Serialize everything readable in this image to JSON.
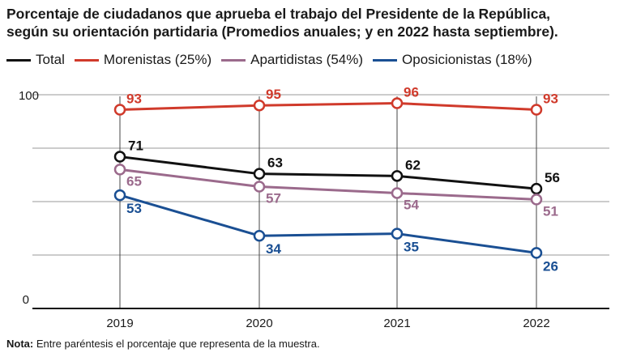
{
  "chart_data": {
    "type": "line",
    "title_line1": "Porcentaje de ciudadanos que aprueba el trabajo del Presidente de la República,",
    "title_line2": "según su orientación partidaria (Promedios anuales; y en 2022 hasta septiembre).",
    "categories": [
      "2019",
      "2020",
      "2021",
      "2022"
    ],
    "y_ticks": [
      "0",
      "100"
    ],
    "ylim": [
      0,
      100
    ],
    "grid": true,
    "legend_position": "top",
    "series": [
      {
        "name": "Total",
        "color": "#111111",
        "values": [
          71,
          63,
          62,
          56
        ],
        "labels": [
          "71",
          "63",
          "62",
          "56"
        ]
      },
      {
        "name": "Morenistas (25%)",
        "color": "#d03a2b",
        "values": [
          93,
          95,
          96,
          93
        ],
        "labels": [
          "93",
          "95",
          "96",
          "93"
        ]
      },
      {
        "name": "Apartidistas (54%)",
        "color": "#9b6a8c",
        "values": [
          65,
          57,
          54,
          51
        ],
        "labels": [
          "65",
          "57",
          "54",
          "51"
        ]
      },
      {
        "name": "Oposicionistas (18%)",
        "color": "#1a4f93",
        "values": [
          53,
          34,
          35,
          26
        ],
        "labels": [
          "53",
          "34",
          "35",
          "26"
        ]
      }
    ]
  },
  "note": {
    "label": "Nota:",
    "text": " Entre paréntesis el porcentaje que representa de la muestra."
  }
}
